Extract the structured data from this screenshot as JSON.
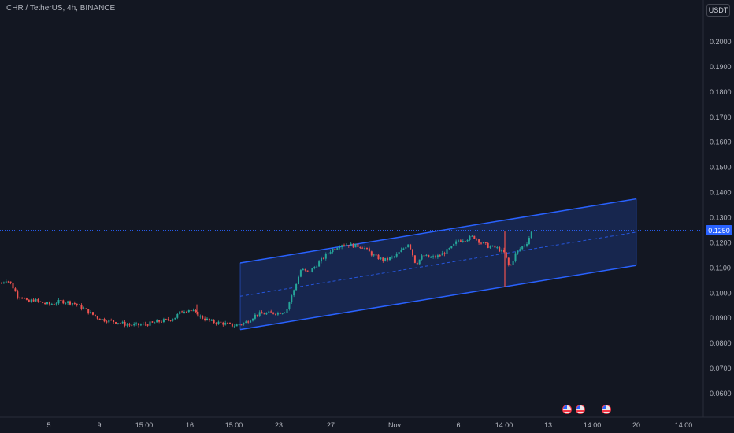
{
  "header": {
    "symbol_title": "CHR / TetherUS, 4h, BINANCE",
    "currency_button": "USDT"
  },
  "price_axis": {
    "labels": [
      "0.2000",
      "0.1900",
      "0.1800",
      "0.1700",
      "0.1600",
      "0.1500",
      "0.1400",
      "0.1300",
      "0.1200",
      "0.1100",
      "0.1000",
      "0.0900",
      "0.0800",
      "0.0700",
      "0.0600"
    ],
    "current_price": "0.1250"
  },
  "time_axis": {
    "labels": [
      "5",
      "9",
      "15:00",
      "16",
      "15:00",
      "23",
      "27",
      "Nov",
      "6",
      "14:00",
      "13",
      "14:00",
      "20",
      "14:00"
    ]
  },
  "events": {
    "flag_icon": "us-flag-icon",
    "count": 3
  },
  "colors": {
    "background": "#131722",
    "up": "#26a69a",
    "down": "#ef5350",
    "channel_line": "#2962ff",
    "channel_fill": "#2962ff",
    "price_line": "#2962ff",
    "axis_text": "#b2b5be"
  },
  "chart_data": {
    "type": "candlestick",
    "price_axis_range": [
      0.055,
      0.2095
    ],
    "price_scale": "linear",
    "grid": false,
    "current_price": 0.125,
    "close_path": [
      [
        "start",
        0.104
      ],
      [
        "",
        0.1055
      ],
      [
        "",
        0.103
      ],
      [
        "",
        0.099
      ],
      [
        "",
        0.0985
      ],
      [
        "",
        0.096
      ],
      [
        "",
        0.0975
      ],
      [
        "",
        0.0965
      ],
      [
        "",
        0.096
      ],
      [
        "5",
        0.0955
      ],
      [
        "",
        0.0968
      ],
      [
        "",
        0.096
      ],
      [
        "",
        0.093
      ],
      [
        "9",
        0.0898
      ],
      [
        "",
        0.089
      ],
      [
        "",
        0.0885
      ],
      [
        "",
        0.0875
      ],
      [
        "",
        0.0872
      ],
      [
        "15:00",
        0.0875
      ],
      [
        "",
        0.088
      ],
      [
        "",
        0.0888
      ],
      [
        "",
        0.0892
      ],
      [
        "",
        0.0902
      ],
      [
        "",
        0.093
      ],
      [
        "16",
        0.0935
      ],
      [
        "",
        0.0905
      ],
      [
        "",
        0.0885
      ],
      [
        "",
        0.088
      ],
      [
        "15:00",
        0.087
      ],
      [
        "",
        0.0882
      ],
      [
        "",
        0.0915
      ],
      [
        "",
        0.092
      ],
      [
        "23",
        0.0922
      ],
      [
        "",
        0.093
      ],
      [
        "",
        0.101
      ],
      [
        "",
        0.1095
      ],
      [
        "",
        0.108
      ],
      [
        "",
        0.111
      ],
      [
        "",
        0.114
      ],
      [
        "27",
        0.117
      ],
      [
        "",
        0.1195
      ],
      [
        "",
        0.119
      ],
      [
        "",
        0.1185
      ],
      [
        "",
        0.115
      ],
      [
        "",
        0.113
      ],
      [
        "Nov",
        0.1145
      ],
      [
        "",
        0.117
      ],
      [
        "",
        0.12
      ],
      [
        "",
        0.1115
      ],
      [
        "",
        0.115
      ],
      [
        "",
        0.114
      ],
      [
        "",
        0.1145
      ],
      [
        "",
        0.116
      ],
      [
        "",
        0.118
      ],
      [
        "6",
        0.121
      ],
      [
        "",
        0.1215
      ],
      [
        "",
        0.1225
      ],
      [
        "",
        0.12
      ],
      [
        "",
        0.1185
      ],
      [
        "",
        0.118
      ],
      [
        "14:00",
        0.116
      ],
      [
        "",
        0.11
      ],
      [
        "",
        0.1155
      ],
      [
        "",
        0.118
      ],
      [
        "",
        0.12
      ],
      [
        "",
        0.125
      ]
    ],
    "channel": {
      "upper_line": {
        "from": [
          "15:00",
          0.112
        ],
        "to": [
          "20",
          0.1375
        ]
      },
      "lower_line": {
        "from": [
          "15:00",
          0.0855
        ],
        "to": [
          "20",
          0.111
        ]
      },
      "mid_line_dashed": true
    },
    "x_tick_labels": [
      "5",
      "9",
      "15:00",
      "16",
      "15:00",
      "23",
      "27",
      "Nov",
      "6",
      "14:00",
      "13",
      "14:00",
      "20",
      "14:00"
    ],
    "y_tick_labels": [
      "0.2000",
      "0.1900",
      "0.1800",
      "0.1700",
      "0.1600",
      "0.1500",
      "0.1400",
      "0.1300",
      "0.1200",
      "0.1100",
      "0.1000",
      "0.0900",
      "0.0800",
      "0.0700",
      "0.0600"
    ]
  }
}
